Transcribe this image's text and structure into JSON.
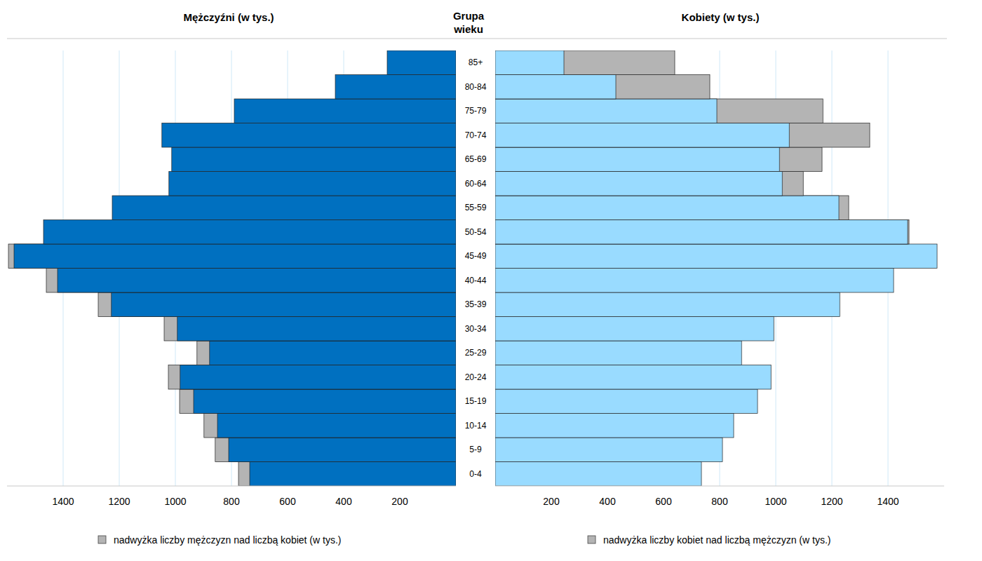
{
  "chart_data": {
    "type": "bar",
    "orientation": "horizontal",
    "xlabel": "Grupa wieku",
    "categories": [
      "0-4",
      "5-9",
      "10-14",
      "15-19",
      "20-24",
      "25-29",
      "30-34",
      "35-39",
      "40-44",
      "45-49",
      "50-54",
      "55-59",
      "60-64",
      "65-69",
      "70-74",
      "75-79",
      "80-84",
      "85+"
    ],
    "series": [
      {
        "name": "Mężczyźni (w tys.)",
        "color": "#0070c0",
        "values": [
          775,
          858,
          898,
          985,
          1025,
          923,
          1040,
          1275,
          1460,
          1595,
          1470,
          1225,
          1023,
          1013,
          1048,
          790,
          430,
          245
        ]
      },
      {
        "name": "Kobiety (w tys.)",
        "color": "#99dbff",
        "values": [
          735,
          810,
          850,
          935,
          983,
          878,
          993,
          1228,
          1420,
          1575,
          1475,
          1260,
          1098,
          1165,
          1335,
          1168,
          765,
          640
        ]
      }
    ],
    "annotations": [
      {
        "text": "nadwyżka liczby mężczyzn nad liczbą kobiet (w tys.)",
        "color": "#b4b4b4"
      },
      {
        "text": "nadwyżka liczby kobiet nad liczbą mężczyzn (w tys.)",
        "color": "#b4b4b4"
      }
    ],
    "xlim": [
      0,
      1600
    ],
    "xticks": [
      200,
      400,
      600,
      800,
      1000,
      1200,
      1400
    ],
    "grid": true
  }
}
